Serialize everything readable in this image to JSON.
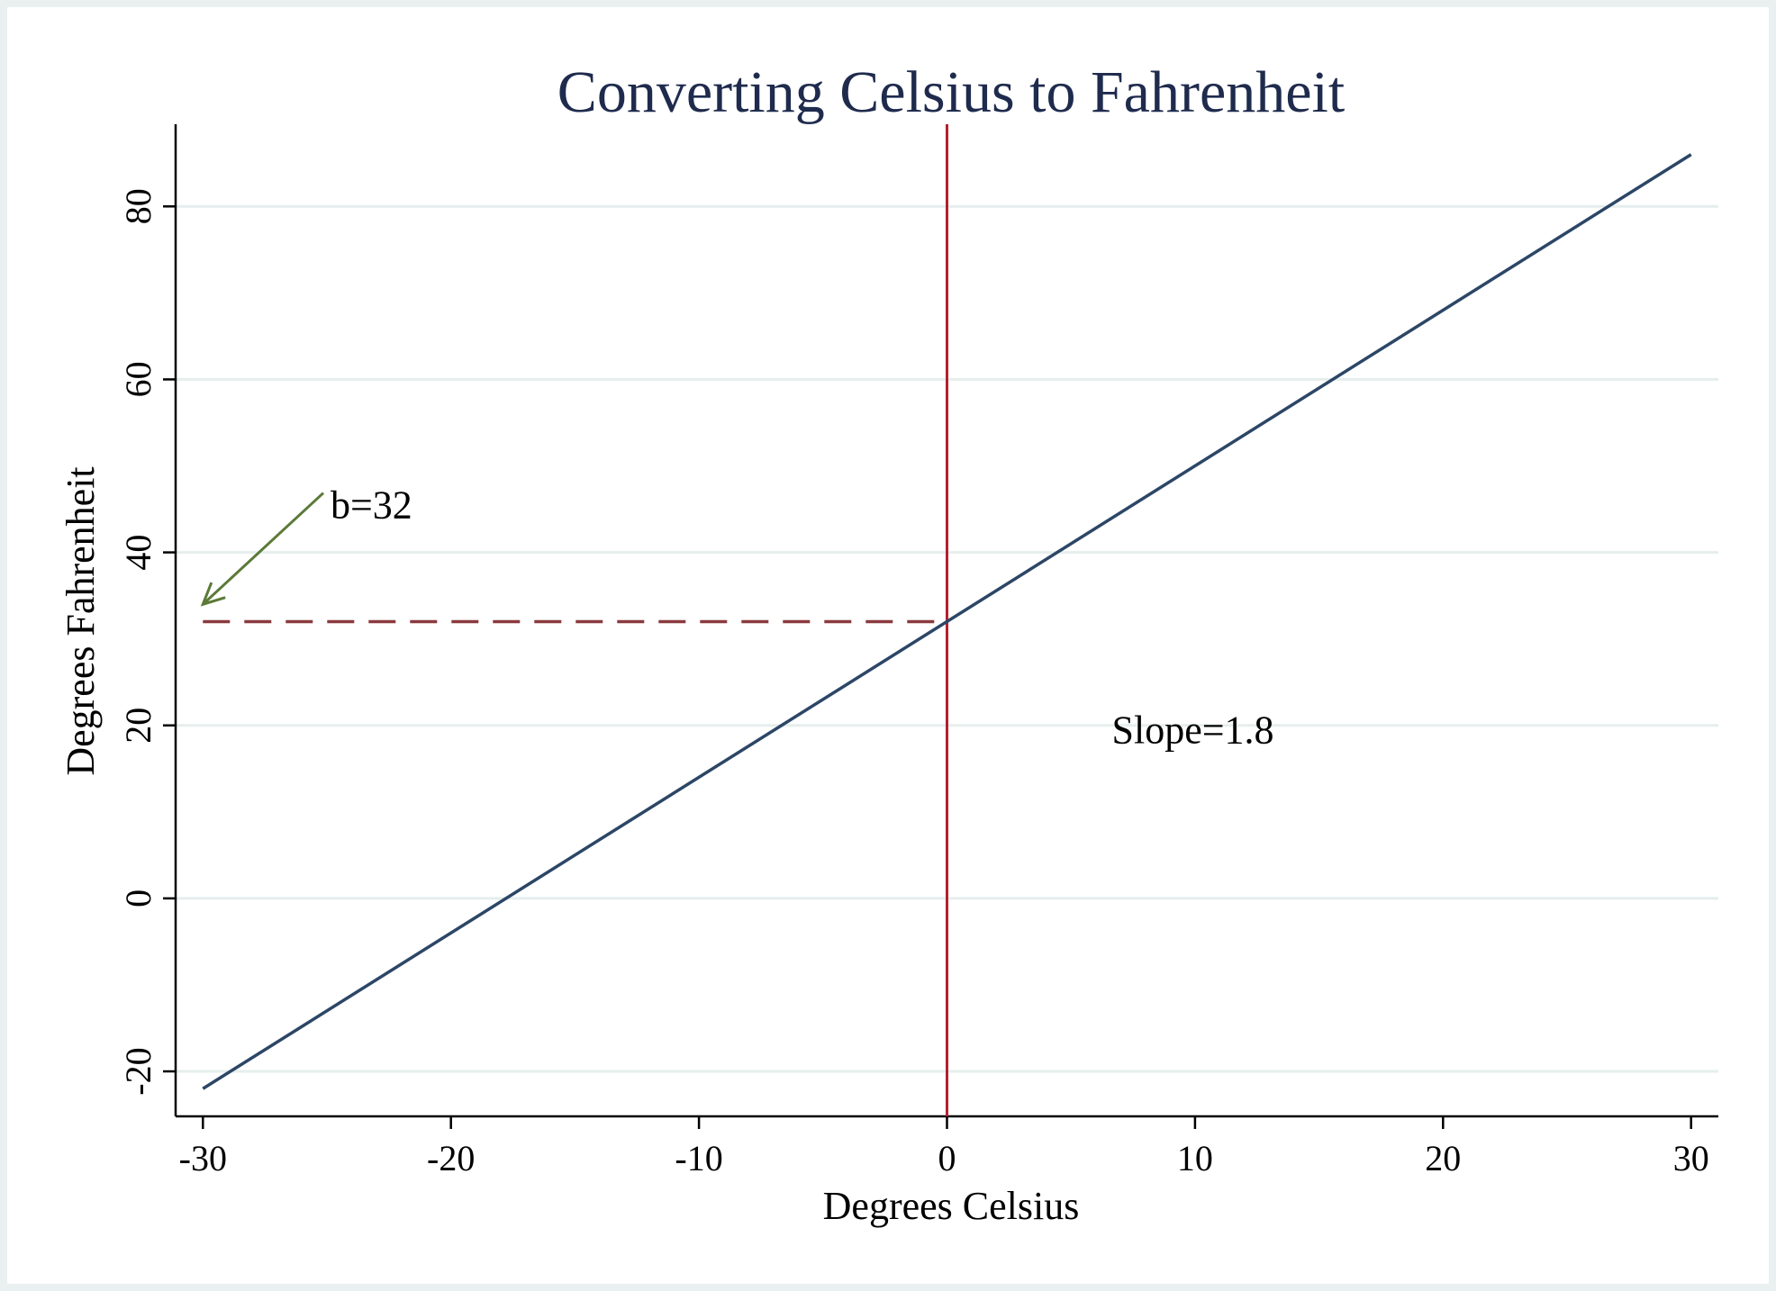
{
  "chart_data": {
    "type": "line",
    "title": "Converting Celsius to Fahrenheit",
    "xlabel": "Degrees Celsius",
    "ylabel": "Degrees Fahrenheit",
    "xlim": [
      -31.1,
      31.1
    ],
    "ylim": [
      -25.2,
      89.5
    ],
    "xticks": [
      -30,
      -20,
      -10,
      0,
      10,
      20,
      30
    ],
    "yticks": [
      -20,
      0,
      20,
      40,
      60,
      80
    ],
    "grid": true,
    "series": [
      {
        "x": [
          -30,
          30
        ],
        "y": [
          -22,
          86
        ],
        "color": "#2c4666"
      }
    ],
    "vline": {
      "x": 0,
      "color": "#b5202e"
    },
    "hline": {
      "y": 32,
      "x_from": -30,
      "x_to": 0,
      "style": "dashed",
      "color": "#8b3a3f"
    },
    "annotations": [
      {
        "text": "b=32",
        "x": -25,
        "y": 45,
        "arrow_to": [
          -30,
          34
        ],
        "arrow_color": "#5b7a37"
      },
      {
        "text": "Slope=1.8",
        "x": 6.5,
        "y": 19
      }
    ]
  },
  "colors": {
    "grid": "#e6eeee",
    "axis": "#000000",
    "background": "#ffffff",
    "outer": "#eaf0f0"
  }
}
